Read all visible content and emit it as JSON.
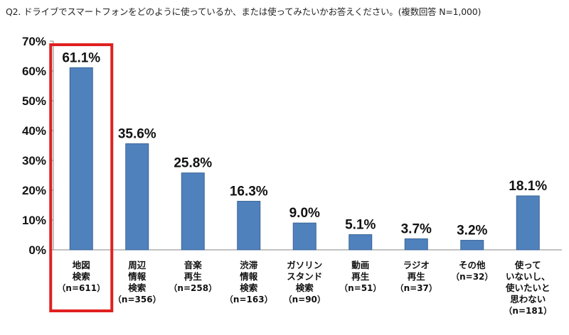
{
  "question": "Q2. ドライブでスマートフォンをどのように使っているか、または使ってみたいかお答えください。(複数回答 N=1,000)",
  "chart_data": {
    "type": "bar",
    "categories": [
      {
        "lines": [
          "地図",
          "検索"
        ],
        "n": "（n=611）"
      },
      {
        "lines": [
          "周辺",
          "情報",
          "検索"
        ],
        "n": "（n=356）"
      },
      {
        "lines": [
          "音楽",
          "再生"
        ],
        "n": "（n=258）"
      },
      {
        "lines": [
          "渋滞",
          "情報",
          "検索"
        ],
        "n": "（n=163）"
      },
      {
        "lines": [
          "ガソリン",
          "スタンド",
          "検索"
        ],
        "n": "（n=90）"
      },
      {
        "lines": [
          "動画",
          "再生"
        ],
        "n": "（n=51）"
      },
      {
        "lines": [
          "ラジオ",
          "再生"
        ],
        "n": "（n=37）"
      },
      {
        "lines": [
          "その他"
        ],
        "n": "（n=32）"
      },
      {
        "lines": [
          "使って",
          "いないし、",
          "使いたいと",
          "思わない"
        ],
        "n": "（n=181）"
      }
    ],
    "values": [
      61.1,
      35.6,
      25.8,
      16.3,
      9.0,
      5.1,
      3.7,
      3.2,
      18.1
    ],
    "value_labels": [
      "61.1%",
      "35.6%",
      "25.8%",
      "16.3%",
      "9.0%",
      "5.1%",
      "3.7%",
      "3.2%",
      "18.1%"
    ],
    "y_ticks": [
      "0%",
      "10%",
      "20%",
      "30%",
      "40%",
      "50%",
      "60%",
      "70%"
    ],
    "ylim": [
      0,
      70
    ],
    "grid": false,
    "highlighted_index": 0,
    "colors": {
      "bar": "#4f81bd",
      "bar_edge": "#3a6595",
      "highlight_box": "#e02020",
      "axis": "#868686"
    }
  }
}
